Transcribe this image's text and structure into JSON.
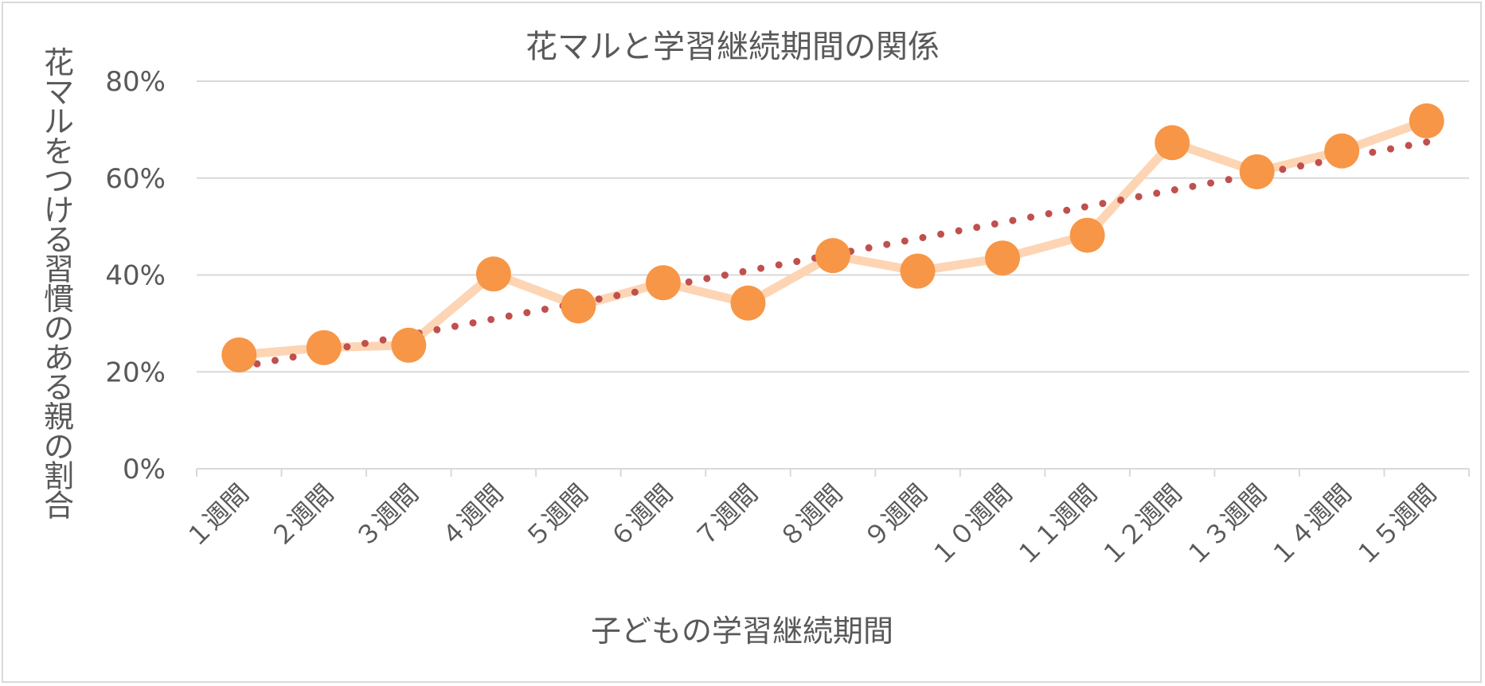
{
  "chart_data": {
    "type": "line",
    "title": "花マルと学習継続期間の関係",
    "xlabel": "子どもの学習継続期間",
    "ylabel": "花マルをつける習慣のある親の割合",
    "categories": [
      "１週間",
      "２週間",
      "３週間",
      "４週間",
      "５週間",
      "６週間",
      "７週間",
      "８週間",
      "９週間",
      "１０週間",
      "１１週間",
      "１２週間",
      "１３週間",
      "１４週間",
      "１５週間"
    ],
    "series": [
      {
        "name": "花マルをつける習慣のある親の割合",
        "values": [
          23.5,
          25.0,
          25.5,
          40.2,
          33.6,
          38.4,
          34.2,
          44.0,
          40.8,
          43.5,
          48.2,
          67.3,
          61.3,
          65.6,
          71.8
        ]
      }
    ],
    "trendline": {
      "type": "linear",
      "style": "dotted"
    },
    "ylim": [
      0,
      80
    ],
    "yticks": [
      0,
      20,
      40,
      60,
      80
    ],
    "ytick_labels": [
      "0%",
      "20%",
      "40%",
      "60%",
      "80%"
    ],
    "grid": true,
    "legend": "none",
    "colors": {
      "line": "#fdd5b4",
      "marker": "#f79646",
      "trend": "#c0504d",
      "grid": "#d9d9d9",
      "text": "#595959"
    }
  }
}
